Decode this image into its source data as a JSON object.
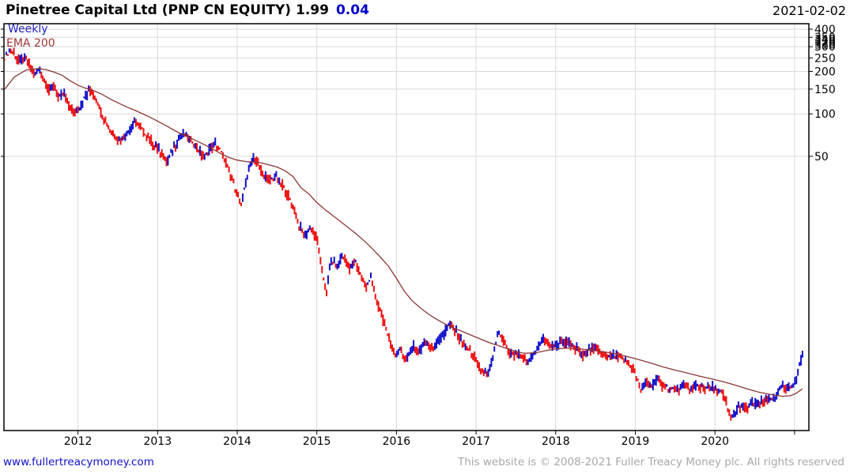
{
  "header": {
    "instrument": "Pinetree Capital Ltd (PNP CN EQUITY)",
    "last_price": "1.99",
    "change": "0.04",
    "date": "2021-02-02"
  },
  "plot_labels": {
    "timeframe": "Weekly",
    "overlay": "EMA 200"
  },
  "footer": {
    "site_link": "www.fullertreacymoney.com",
    "copyright": "This website is © 2008-2021 Fuller Treacy Money plc. All rights reserved"
  },
  "colors": {
    "up_candle": "#1212cc",
    "down_candle": "#ee1111",
    "ema_line": "#8d3535",
    "timeframe_label": "#2222bb",
    "ema_label": "#a03434",
    "change_text": "#0000cc",
    "link_text": "#1010cc",
    "copyright_text": "#a8a8a8",
    "grid": "#d9d9d9",
    "frame": "#000000"
  },
  "chart_data": {
    "type": "candlestick",
    "title": "Pinetree Capital Ltd (PNP CN EQUITY)",
    "timeframe": "Weekly",
    "overlay": "EMA 200",
    "last_price": "1.99",
    "change": "0.04",
    "as_of_date": "2021-02-02",
    "y_axis": {
      "scale": "log",
      "top_value": 437,
      "bottom_value": 0.566,
      "tick_labels": [
        400,
        350,
        300,
        250,
        200,
        150,
        100,
        50
      ],
      "minor_tick_labels": [
        340,
        330,
        320,
        310
      ]
    },
    "x_axis": {
      "min_year": 2011.07,
      "max_year": 2021.18,
      "gridline_years": [
        2012,
        2013,
        2014,
        2015,
        2016,
        2017,
        2018,
        2019,
        2020,
        2021
      ],
      "tick_labels": [
        "2012",
        "2013",
        "2014",
        "2015",
        "2016",
        "2017",
        "2018",
        "2019",
        "2020"
      ]
    },
    "weeks_per_year": 52.18,
    "series": {
      "name": "PNP CN close (weekly, read from chart)",
      "close_anchors": [
        [
          2011.08,
          252
        ],
        [
          2011.15,
          288
        ],
        [
          2011.21,
          260
        ],
        [
          2011.27,
          235
        ],
        [
          2011.33,
          252
        ],
        [
          2011.4,
          212
        ],
        [
          2011.46,
          188
        ],
        [
          2011.52,
          208
        ],
        [
          2011.58,
          170
        ],
        [
          2011.64,
          148
        ],
        [
          2011.7,
          160
        ],
        [
          2011.76,
          128
        ],
        [
          2011.82,
          140
        ],
        [
          2011.88,
          118
        ],
        [
          2011.95,
          102
        ],
        [
          2012.02,
          112
        ],
        [
          2012.08,
          130
        ],
        [
          2012.15,
          148
        ],
        [
          2012.21,
          136
        ],
        [
          2012.27,
          112
        ],
        [
          2012.33,
          92
        ],
        [
          2012.4,
          76
        ],
        [
          2012.47,
          70
        ],
        [
          2012.53,
          66
        ],
        [
          2012.6,
          71
        ],
        [
          2012.66,
          80
        ],
        [
          2012.71,
          92
        ],
        [
          2012.78,
          82
        ],
        [
          2012.85,
          70
        ],
        [
          2012.92,
          63
        ],
        [
          2013.0,
          57
        ],
        [
          2013.06,
          52
        ],
        [
          2013.12,
          45
        ],
        [
          2013.2,
          58
        ],
        [
          2013.28,
          68
        ],
        [
          2013.35,
          72
        ],
        [
          2013.42,
          66
        ],
        [
          2013.5,
          58
        ],
        [
          2013.58,
          49
        ],
        [
          2013.65,
          56
        ],
        [
          2013.72,
          62
        ],
        [
          2013.78,
          56
        ],
        [
          2013.85,
          46
        ],
        [
          2013.92,
          36
        ],
        [
          2014.0,
          27
        ],
        [
          2014.05,
          22
        ],
        [
          2014.1,
          32
        ],
        [
          2014.16,
          44
        ],
        [
          2014.21,
          50
        ],
        [
          2014.27,
          43
        ],
        [
          2014.33,
          37
        ],
        [
          2014.4,
          34
        ],
        [
          2014.48,
          36
        ],
        [
          2014.55,
          32
        ],
        [
          2014.62,
          28
        ],
        [
          2014.7,
          22
        ],
        [
          2014.78,
          16
        ],
        [
          2014.85,
          13.5
        ],
        [
          2014.92,
          16
        ],
        [
          2015.0,
          13
        ],
        [
          2015.06,
          8
        ],
        [
          2015.12,
          5.4
        ],
        [
          2015.18,
          9.2
        ],
        [
          2015.25,
          8.2
        ],
        [
          2015.32,
          9.8
        ],
        [
          2015.4,
          8.2
        ],
        [
          2015.48,
          9.0
        ],
        [
          2015.55,
          7.2
        ],
        [
          2015.62,
          5.8
        ],
        [
          2015.68,
          7.0
        ],
        [
          2015.75,
          4.8
        ],
        [
          2015.82,
          3.6
        ],
        [
          2015.9,
          2.6
        ],
        [
          2015.98,
          1.9
        ],
        [
          2016.05,
          2.2
        ],
        [
          2016.12,
          1.75
        ],
        [
          2016.2,
          2.3
        ],
        [
          2016.28,
          2.05
        ],
        [
          2016.35,
          2.4
        ],
        [
          2016.45,
          2.25
        ],
        [
          2016.55,
          2.5
        ],
        [
          2016.65,
          3.2
        ],
        [
          2016.72,
          3.0
        ],
        [
          2016.8,
          2.5
        ],
        [
          2016.88,
          2.2
        ],
        [
          2016.95,
          2.0
        ],
        [
          2017.02,
          1.7
        ],
        [
          2017.1,
          1.4
        ],
        [
          2017.18,
          1.55
        ],
        [
          2017.24,
          2.2
        ],
        [
          2017.28,
          2.9
        ],
        [
          2017.33,
          2.5
        ],
        [
          2017.4,
          2.1
        ],
        [
          2017.46,
          1.95
        ],
        [
          2017.52,
          2.0
        ],
        [
          2017.58,
          1.85
        ],
        [
          2017.64,
          1.7
        ],
        [
          2017.7,
          1.95
        ],
        [
          2017.78,
          2.2
        ],
        [
          2017.85,
          2.6
        ],
        [
          2017.92,
          2.3
        ],
        [
          2018.0,
          2.2
        ],
        [
          2018.07,
          2.5
        ],
        [
          2018.13,
          2.35
        ],
        [
          2018.2,
          2.25
        ],
        [
          2018.28,
          2.1
        ],
        [
          2018.35,
          1.9
        ],
        [
          2018.42,
          2.2
        ],
        [
          2018.5,
          2.15
        ],
        [
          2018.58,
          2.0
        ],
        [
          2018.66,
          1.9
        ],
        [
          2018.74,
          1.95
        ],
        [
          2018.82,
          1.85
        ],
        [
          2018.9,
          1.7
        ],
        [
          2018.96,
          1.55
        ],
        [
          2019.02,
          1.35
        ],
        [
          2019.07,
          1.05
        ],
        [
          2019.13,
          1.28
        ],
        [
          2019.2,
          1.18
        ],
        [
          2019.28,
          1.3
        ],
        [
          2019.36,
          1.18
        ],
        [
          2019.44,
          1.12
        ],
        [
          2019.52,
          1.1
        ],
        [
          2019.6,
          1.2
        ],
        [
          2019.68,
          1.12
        ],
        [
          2019.76,
          1.16
        ],
        [
          2019.84,
          1.18
        ],
        [
          2019.92,
          1.15
        ],
        [
          2020.0,
          1.12
        ],
        [
          2020.08,
          1.05
        ],
        [
          2020.14,
          0.9
        ],
        [
          2020.19,
          0.68
        ],
        [
          2020.25,
          0.75
        ],
        [
          2020.32,
          0.85
        ],
        [
          2020.4,
          0.8
        ],
        [
          2020.48,
          0.9
        ],
        [
          2020.56,
          0.87
        ],
        [
          2020.64,
          0.93
        ],
        [
          2020.72,
          0.97
        ],
        [
          2020.79,
          1.0
        ],
        [
          2020.83,
          1.16
        ],
        [
          2020.88,
          1.1
        ],
        [
          2020.93,
          1.13
        ],
        [
          2020.98,
          1.2
        ],
        [
          2021.02,
          1.32
        ],
        [
          2021.05,
          1.55
        ],
        [
          2021.08,
          1.8
        ],
        [
          2021.1,
          1.99
        ]
      ]
    },
    "ema_anchors": [
      [
        2011.08,
        150
      ],
      [
        2011.2,
        183
      ],
      [
        2011.35,
        205
      ],
      [
        2011.5,
        210
      ],
      [
        2011.6,
        206
      ],
      [
        2011.7,
        198
      ],
      [
        2011.8,
        188
      ],
      [
        2011.9,
        172
      ],
      [
        2012.0,
        160
      ],
      [
        2012.1,
        152
      ],
      [
        2012.2,
        146
      ],
      [
        2012.3,
        138
      ],
      [
        2012.4,
        128
      ],
      [
        2012.5,
        120
      ],
      [
        2012.6,
        113
      ],
      [
        2012.7,
        107
      ],
      [
        2012.8,
        101
      ],
      [
        2012.9,
        95
      ],
      [
        2013.0,
        89
      ],
      [
        2013.1,
        83
      ],
      [
        2013.2,
        77
      ],
      [
        2013.3,
        72
      ],
      [
        2013.4,
        68
      ],
      [
        2013.5,
        64
      ],
      [
        2013.6,
        60
      ],
      [
        2013.7,
        56
      ],
      [
        2013.8,
        52
      ],
      [
        2013.9,
        49
      ],
      [
        2014.0,
        47
      ],
      [
        2014.1,
        46
      ],
      [
        2014.2,
        45.5
      ],
      [
        2014.3,
        45
      ],
      [
        2014.4,
        43.5
      ],
      [
        2014.5,
        42
      ],
      [
        2014.6,
        39.5
      ],
      [
        2014.7,
        36
      ],
      [
        2014.8,
        30
      ],
      [
        2014.9,
        27
      ],
      [
        2015.0,
        23.5
      ],
      [
        2015.1,
        21
      ],
      [
        2015.2,
        19
      ],
      [
        2015.3,
        17.2
      ],
      [
        2015.4,
        15.5
      ],
      [
        2015.5,
        14
      ],
      [
        2015.6,
        12.5
      ],
      [
        2015.7,
        11
      ],
      [
        2015.8,
        9.6
      ],
      [
        2015.9,
        8.3
      ],
      [
        2016.0,
        6.8
      ],
      [
        2016.1,
        5.5
      ],
      [
        2016.2,
        4.7
      ],
      [
        2016.3,
        4.2
      ],
      [
        2016.4,
        3.8
      ],
      [
        2016.5,
        3.5
      ],
      [
        2016.6,
        3.25
      ],
      [
        2016.7,
        3.05
      ],
      [
        2016.8,
        2.9
      ],
      [
        2016.9,
        2.75
      ],
      [
        2017.0,
        2.6
      ],
      [
        2017.15,
        2.4
      ],
      [
        2017.3,
        2.25
      ],
      [
        2017.45,
        2.1
      ],
      [
        2017.6,
        2.0
      ],
      [
        2017.75,
        2.02
      ],
      [
        2017.9,
        2.1
      ],
      [
        2018.0,
        2.15
      ],
      [
        2018.15,
        2.18
      ],
      [
        2018.3,
        2.15
      ],
      [
        2018.45,
        2.1
      ],
      [
        2018.6,
        2.05
      ],
      [
        2018.75,
        1.98
      ],
      [
        2018.9,
        1.9
      ],
      [
        2019.05,
        1.8
      ],
      [
        2019.2,
        1.7
      ],
      [
        2019.35,
        1.6
      ],
      [
        2019.5,
        1.52
      ],
      [
        2019.65,
        1.45
      ],
      [
        2019.8,
        1.38
      ],
      [
        2019.95,
        1.32
      ],
      [
        2020.1,
        1.26
      ],
      [
        2020.25,
        1.19
      ],
      [
        2020.4,
        1.12
      ],
      [
        2020.55,
        1.06
      ],
      [
        2020.7,
        1.02
      ],
      [
        2020.85,
        0.99
      ],
      [
        2020.95,
        1.0
      ],
      [
        2021.02,
        1.04
      ],
      [
        2021.1,
        1.12
      ]
    ],
    "render": {
      "wiggle": 0.07,
      "range_ext": 0.09,
      "candle_width": 2
    }
  }
}
